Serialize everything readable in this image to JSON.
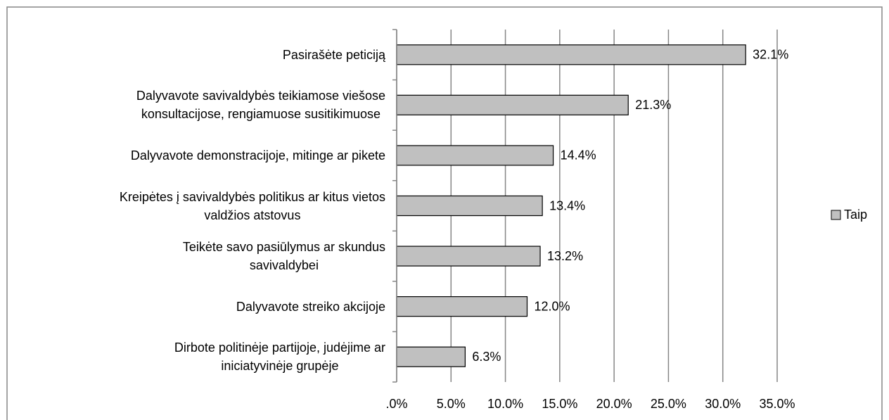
{
  "chart_data": {
    "type": "hbar",
    "categories": [
      "Pasirašėte peticiją",
      "Dalyvavote savivaldybės teikiamose viešose\nkonsultacijose, rengiamuose susitikimuose",
      "Dalyvavote demonstracijoje, mitinge ar pikete",
      "Kreipėtes į savivaldybės politikus ar kitus vietos\nvaldžios atstovus",
      "Teikėte savo pasiūlymus ar skundus\nsavivaldybei",
      "Dalyvavote streiko akcijoje",
      "Dirbote politinėje partijoje, judėjime ar\niniciatyvinėje grupėje"
    ],
    "series": [
      {
        "name": "Taip",
        "color": "#c0c0c0",
        "values": [
          32.1,
          21.3,
          14.4,
          13.4,
          13.2,
          12.0,
          6.3
        ],
        "value_labels": [
          "32.1%",
          "21.3%",
          "14.4%",
          "13.4%",
          "13.2%",
          "12.0%",
          "6.3%"
        ]
      }
    ],
    "xlim": [
      0,
      35
    ],
    "xticks": [
      {
        "value": 0,
        "label": ".0%"
      },
      {
        "value": 5,
        "label": "5.0%"
      },
      {
        "value": 10,
        "label": "10.0%"
      },
      {
        "value": 15,
        "label": "15.0%"
      },
      {
        "value": 20,
        "label": "20.0%"
      },
      {
        "value": 25,
        "label": "25.0%"
      },
      {
        "value": 30,
        "label": "30.0%"
      },
      {
        "value": 35,
        "label": "35.0%"
      }
    ],
    "grid": true,
    "legend": "right"
  }
}
